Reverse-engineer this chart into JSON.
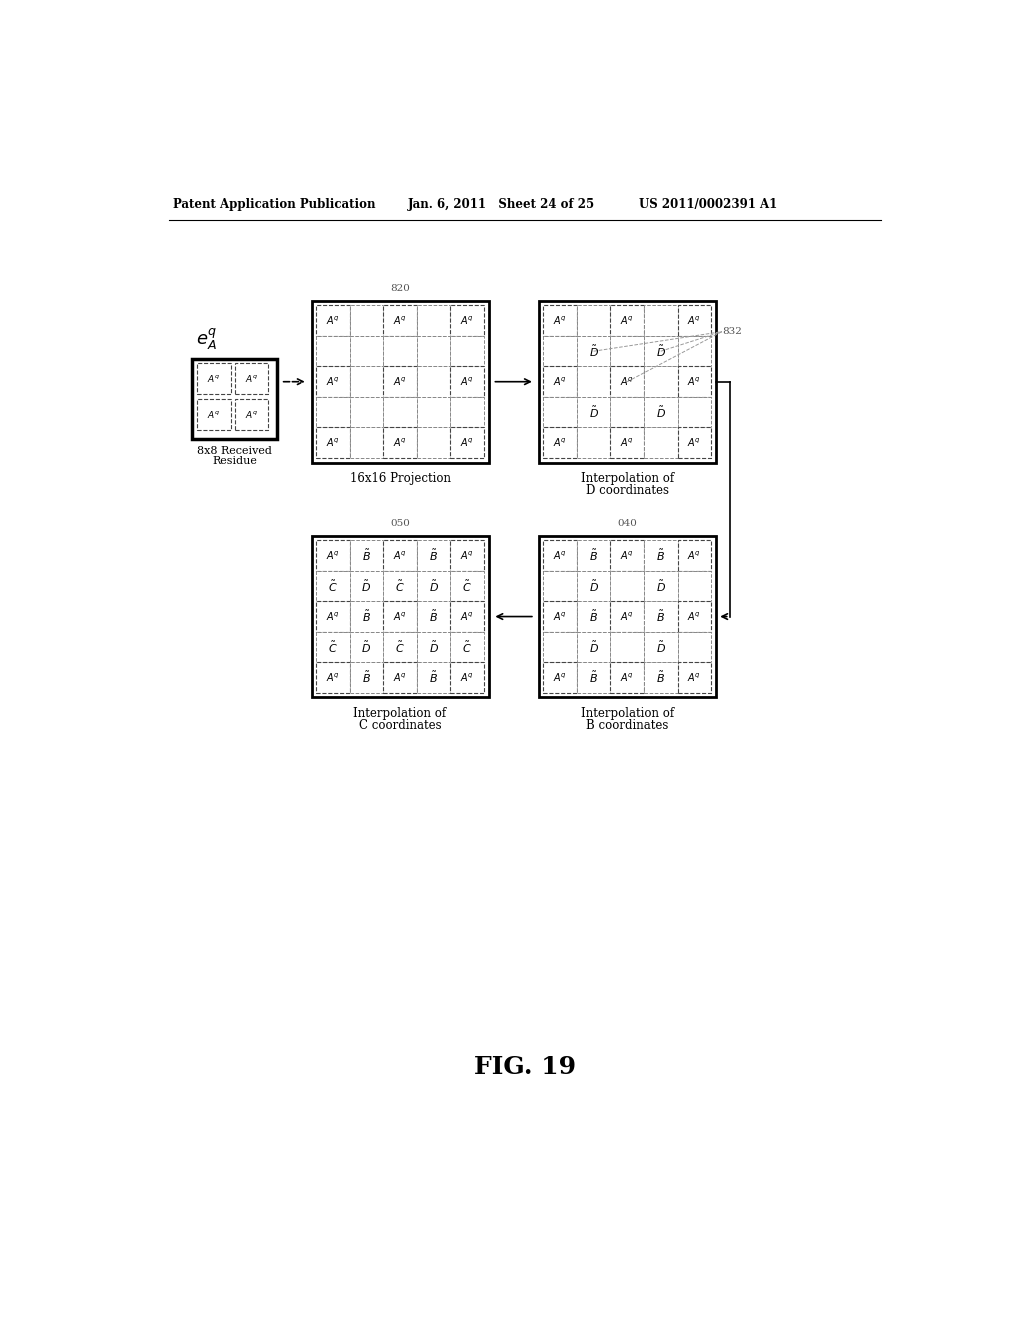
{
  "header_left": "Patent Application Publication",
  "header_center": "Jan. 6, 2011   Sheet 24 of 25",
  "header_right": "US 2011/0002391 A1",
  "fig_label": "FIG. 19",
  "bg_color": "#ffffff"
}
